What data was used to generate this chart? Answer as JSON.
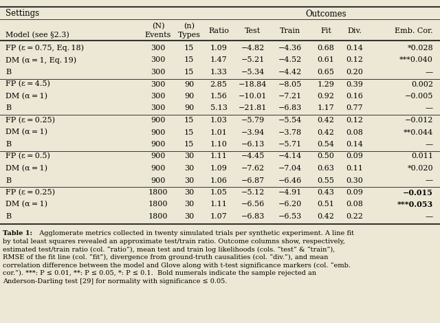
{
  "settings_header": "Settings",
  "outcomes_header": "Outcomes",
  "model_col_header": "Model (see §2.3)",
  "col_headers_row1": [
    "(N)",
    "(n)",
    "Ratio",
    "Test",
    "Train",
    "Fit",
    "Div.",
    "Emb. Cor."
  ],
  "col_headers_row2": [
    "Events",
    "Types",
    "",
    "",
    "",
    "",
    "",
    ""
  ],
  "rows": [
    {
      "model": "FP (ε = 0.75, Eq. 18)",
      "N": "300",
      "n": "15",
      "ratio": "1.09",
      "test": "−4.82",
      "train": "−4.36",
      "fit": "0.68",
      "div": "0.14",
      "emb": "*0.028",
      "emb_bold": false,
      "group": 0
    },
    {
      "model": "DM (α = 1, Eq. 19)",
      "N": "300",
      "n": "15",
      "ratio": "1.47",
      "test": "−5.21",
      "train": "−4.52",
      "fit": "0.61",
      "div": "0.12",
      "emb": "***0.040",
      "emb_bold": false,
      "group": 0
    },
    {
      "model": "B",
      "N": "300",
      "n": "15",
      "ratio": "1.33",
      "test": "−5.34",
      "train": "−4.42",
      "fit": "0.65",
      "div": "0.20",
      "emb": "—",
      "emb_bold": false,
      "group": 0
    },
    {
      "model": "FP (ε = 4.5)",
      "N": "300",
      "n": "90",
      "ratio": "2.85",
      "test": "−18.84",
      "train": "−8.05",
      "fit": "1.29",
      "div": "0.39",
      "emb": "0.002",
      "emb_bold": false,
      "group": 1
    },
    {
      "model": "DM (α = 1)",
      "N": "300",
      "n": "90",
      "ratio": "1.56",
      "test": "−10.01",
      "train": "−7.21",
      "fit": "0.92",
      "div": "0.16",
      "emb": "−0.005",
      "emb_bold": false,
      "group": 1
    },
    {
      "model": "B",
      "N": "300",
      "n": "90",
      "ratio": "5.13",
      "test": "−21.81",
      "train": "−6.83",
      "fit": "1.17",
      "div": "0.77",
      "emb": "—",
      "emb_bold": false,
      "group": 1
    },
    {
      "model": "FP (ε = 0.25)",
      "N": "900",
      "n": "15",
      "ratio": "1.03",
      "test": "−5.79",
      "train": "−5.54",
      "fit": "0.42",
      "div": "0.12",
      "emb": "−0.012",
      "emb_bold": false,
      "group": 2
    },
    {
      "model": "DM (α = 1)",
      "N": "900",
      "n": "15",
      "ratio": "1.01",
      "test": "−3.94",
      "train": "−3.78",
      "fit": "0.42",
      "div": "0.08",
      "emb": "**0.044",
      "emb_bold": false,
      "group": 2
    },
    {
      "model": "B",
      "N": "900",
      "n": "15",
      "ratio": "1.10",
      "test": "−6.13",
      "train": "−5.71",
      "fit": "0.54",
      "div": "0.14",
      "emb": "—",
      "emb_bold": false,
      "group": 2
    },
    {
      "model": "FP (ε = 0.5)",
      "N": "900",
      "n": "30",
      "ratio": "1.11",
      "test": "−4.45",
      "train": "−4.14",
      "fit": "0.50",
      "div": "0.09",
      "emb": "0.011",
      "emb_bold": false,
      "group": 3
    },
    {
      "model": "DM (α = 1)",
      "N": "900",
      "n": "30",
      "ratio": "1.09",
      "test": "−7.62",
      "train": "−7.04",
      "fit": "0.63",
      "div": "0.11",
      "emb": "*0.020",
      "emb_bold": false,
      "group": 3
    },
    {
      "model": "B",
      "N": "900",
      "n": "30",
      "ratio": "1.06",
      "test": "−6.87",
      "train": "−6.46",
      "fit": "0.55",
      "div": "0.30",
      "emb": "—",
      "emb_bold": false,
      "group": 3
    },
    {
      "model": "FP (ε = 0.25)",
      "N": "1800",
      "n": "30",
      "ratio": "1.05",
      "test": "−5.12",
      "train": "−4.91",
      "fit": "0.43",
      "div": "0.09",
      "emb": "−0.015",
      "emb_bold": true,
      "group": 4
    },
    {
      "model": "DM (α = 1)",
      "N": "1800",
      "n": "30",
      "ratio": "1.11",
      "test": "−6.56",
      "train": "−6.20",
      "fit": "0.51",
      "div": "0.08",
      "emb": "***0.053",
      "emb_bold": true,
      "group": 4
    },
    {
      "model": "B",
      "N": "1800",
      "n": "30",
      "ratio": "1.07",
      "test": "−6.83",
      "train": "−6.53",
      "fit": "0.42",
      "div": "0.22",
      "emb": "—",
      "emb_bold": false,
      "group": 4
    }
  ],
  "caption_bold": "Table 1:",
  "caption_rest": "  Agglomerate metrics collected in twenty simulated trials per synthetic experiment. A line fit\nby total least squares revealed an approximate test/train ratio. Outcome columns show, respectively,\nestimated test/train ratio (col. “ratio”), mean test and train log likelihoods (cols. “test” & “train”),\nRMSE of the fit line (col. “fit”), divergence from ground-truth causalities (col. “div.”), and mean\ncorrelation difference between the model and Glove along with t-test significance markers (col. “emb.\ncor.”). ***: P ≤ 0.01, **: P ≤ 0.05, *: P ≤ 0.1.  Bold numerals indicate the sample rejected an\nAnderson-Darling test [29] for normality with significance ≤ 0.05.",
  "bg_color": "#ede8d5",
  "line_color": "#333333",
  "fig_width": 6.4,
  "fig_height": 4.7,
  "dpi": 100
}
